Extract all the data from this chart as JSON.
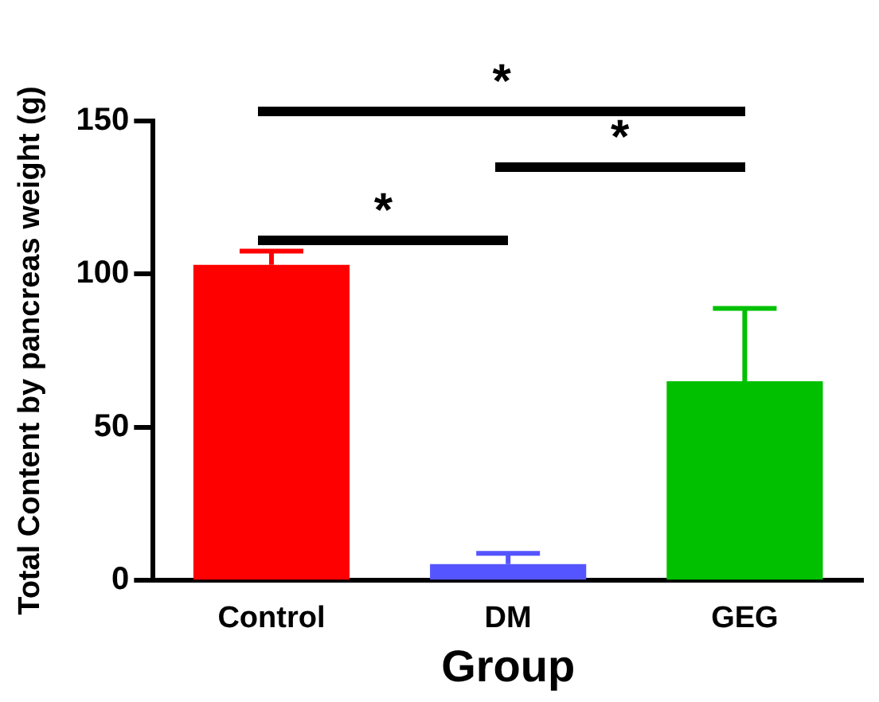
{
  "chart_data": {
    "type": "bar",
    "xlabel": "Group",
    "ylabel": "Total Content by pancreas weight (g)",
    "categories": [
      "Control",
      "DM",
      "GEG"
    ],
    "values": [
      103,
      5.3,
      65
    ],
    "colors": [
      "#ff0000",
      "#5555ff",
      "#00c000"
    ],
    "errors": [
      [
        103,
        107.5
      ],
      [
        5.3,
        8.8
      ],
      [
        65,
        88.8
      ]
    ],
    "ylim": [
      0,
      150
    ],
    "yticks": [
      0,
      50,
      100,
      150
    ],
    "grid": false,
    "legend": false,
    "annotations": [
      "*",
      "*",
      "*"
    ]
  }
}
